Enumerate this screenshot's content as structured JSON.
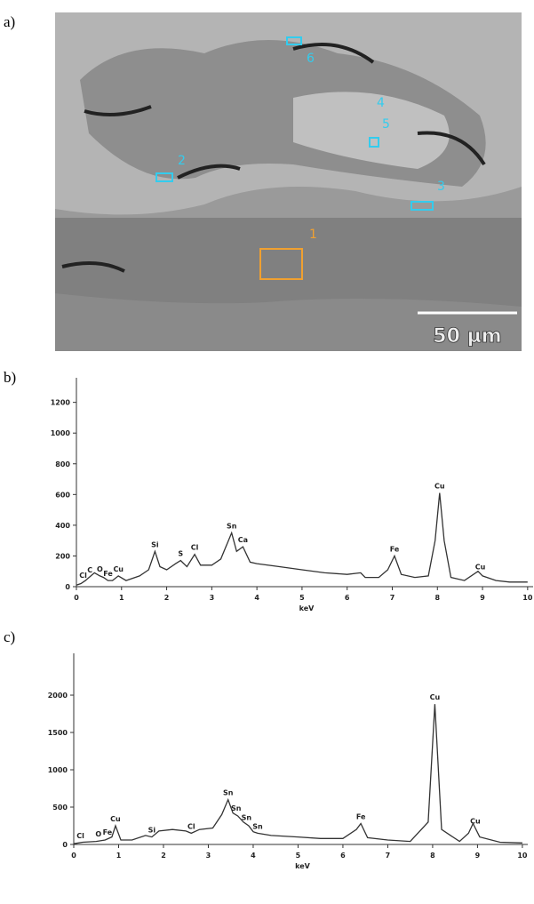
{
  "panel_labels": [
    "a)",
    "b)",
    "c)"
  ],
  "image": {
    "labels": [
      "1",
      "2",
      "3",
      "4",
      "5",
      "6"
    ],
    "scale_bar": "50 µm"
  },
  "chart_data": [
    {
      "type": "line",
      "x_label": "keV",
      "x": [
        0,
        0.1,
        0.2,
        0.28,
        0.4,
        0.52,
        0.6,
        0.7,
        0.8,
        0.93,
        1.1,
        1.4,
        1.6,
        1.74,
        1.85,
        2.0,
        2.2,
        2.31,
        2.45,
        2.62,
        2.75,
        3.0,
        3.2,
        3.44,
        3.55,
        3.69,
        3.85,
        4.0,
        4.5,
        5.0,
        5.5,
        6.0,
        6.3,
        6.4,
        6.7,
        6.9,
        7.05,
        7.2,
        7.5,
        7.8,
        7.95,
        8.05,
        8.15,
        8.3,
        8.6,
        8.9,
        9.0,
        9.3,
        9.6,
        10.0
      ],
      "values": [
        10,
        20,
        40,
        60,
        90,
        70,
        60,
        40,
        40,
        70,
        40,
        70,
        110,
        230,
        130,
        110,
        150,
        170,
        130,
        210,
        140,
        140,
        180,
        350,
        230,
        260,
        160,
        150,
        130,
        110,
        90,
        80,
        90,
        60,
        60,
        110,
        200,
        80,
        60,
        70,
        300,
        610,
        300,
        60,
        40,
        100,
        70,
        40,
        30,
        30
      ],
      "color": "#333333",
      "xlim": [
        0,
        10.2
      ],
      "xticks": [
        0,
        1,
        2,
        3,
        4,
        5,
        6,
        7,
        8,
        9,
        10
      ],
      "ylim": [
        0,
        1360
      ],
      "yticks": [
        0,
        200,
        400,
        600,
        800,
        1000,
        1200
      ],
      "annotations": [
        {
          "text": "Cl",
          "x": 0.15
        },
        {
          "text": "C",
          "x": 0.3
        },
        {
          "text": "O",
          "x": 0.52
        },
        {
          "text": "Fe",
          "x": 0.7
        },
        {
          "text": "Cu",
          "x": 0.93
        },
        {
          "text": "Si",
          "x": 1.74
        },
        {
          "text": "S",
          "x": 2.31
        },
        {
          "text": "Cl",
          "x": 2.62
        },
        {
          "text": "Sn",
          "x": 3.44
        },
        {
          "text": "Ca",
          "x": 3.69
        },
        {
          "text": "Fe",
          "x": 7.05
        },
        {
          "text": "Cu",
          "x": 8.05
        },
        {
          "text": "Cu",
          "x": 8.95
        }
      ]
    },
    {
      "type": "line",
      "x_label": "keV",
      "x": [
        0,
        0.2,
        0.5,
        0.7,
        0.85,
        0.93,
        1.05,
        1.3,
        1.6,
        1.74,
        1.9,
        2.2,
        2.5,
        2.62,
        2.8,
        3.1,
        3.3,
        3.44,
        3.55,
        3.66,
        3.78,
        3.9,
        4.0,
        4.1,
        4.4,
        5.0,
        5.5,
        6.0,
        6.3,
        6.4,
        6.55,
        7.0,
        7.5,
        7.9,
        8.05,
        8.2,
        8.6,
        8.8,
        8.9,
        9.05,
        9.5,
        10.0
      ],
      "values": [
        10,
        30,
        40,
        60,
        100,
        250,
        60,
        60,
        120,
        100,
        180,
        200,
        180,
        150,
        200,
        220,
        400,
        600,
        420,
        380,
        300,
        250,
        170,
        150,
        120,
        100,
        80,
        80,
        200,
        280,
        90,
        60,
        40,
        300,
        1880,
        200,
        40,
        150,
        280,
        100,
        30,
        20
      ],
      "color": "#333333",
      "xlim": [
        0,
        10.2
      ],
      "xticks": [
        0,
        1,
        2,
        3,
        4,
        5,
        6,
        7,
        8,
        9,
        10
      ],
      "ylim": [
        0,
        2560
      ],
      "yticks": [
        0,
        500,
        1000,
        1500,
        2000
      ],
      "annotations": [
        {
          "text": "Cl",
          "x": 0.15
        },
        {
          "text": "O",
          "x": 0.55
        },
        {
          "text": "Fe",
          "x": 0.75
        },
        {
          "text": "Cu",
          "x": 0.93
        },
        {
          "text": "Si",
          "x": 1.74
        },
        {
          "text": "Cl",
          "x": 2.62
        },
        {
          "text": "Sn",
          "x": 3.44
        },
        {
          "text": "Sn",
          "x": 3.62
        },
        {
          "text": "Sn",
          "x": 3.85
        },
        {
          "text": "Sn",
          "x": 4.1
        },
        {
          "text": "Fe",
          "x": 6.4
        },
        {
          "text": "Cu",
          "x": 8.05
        },
        {
          "text": "Cu",
          "x": 8.95
        }
      ]
    }
  ]
}
